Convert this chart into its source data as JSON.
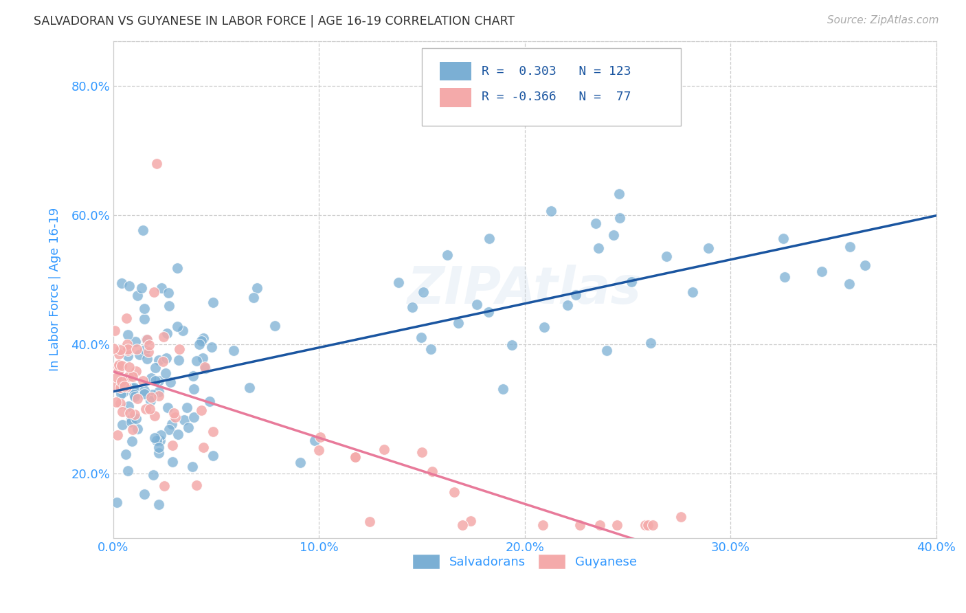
{
  "title": "SALVADORAN VS GUYANESE IN LABOR FORCE | AGE 16-19 CORRELATION CHART",
  "source": "Source: ZipAtlas.com",
  "ylabel": "In Labor Force | Age 16-19",
  "watermark": "ZIPAtlas",
  "xlim": [
    0.0,
    0.4
  ],
  "ylim": [
    0.1,
    0.87
  ],
  "xticks": [
    0.0,
    0.1,
    0.2,
    0.3,
    0.4
  ],
  "yticks": [
    0.2,
    0.4,
    0.6,
    0.8
  ],
  "xlabel_labels": [
    "0.0%",
    "10.0%",
    "20.0%",
    "30.0%",
    "40.0%"
  ],
  "ylabel_labels": [
    "20.0%",
    "40.0%",
    "60.0%",
    "80.0%"
  ],
  "salvadoran_R": 0.303,
  "salvadoran_N": 123,
  "guyanese_R": -0.366,
  "guyanese_N": 77,
  "blue_color": "#7BAFD4",
  "pink_color": "#F4AAAA",
  "line_blue": "#1A55A0",
  "line_pink": "#E87A9A",
  "legend_blue_label": "Salvadorans",
  "legend_pink_label": "Guyanese",
  "title_color": "#333333",
  "tick_label_color": "#3399FF",
  "background_color": "#FFFFFF",
  "grid_color": "#CCCCCC",
  "seed": 42
}
